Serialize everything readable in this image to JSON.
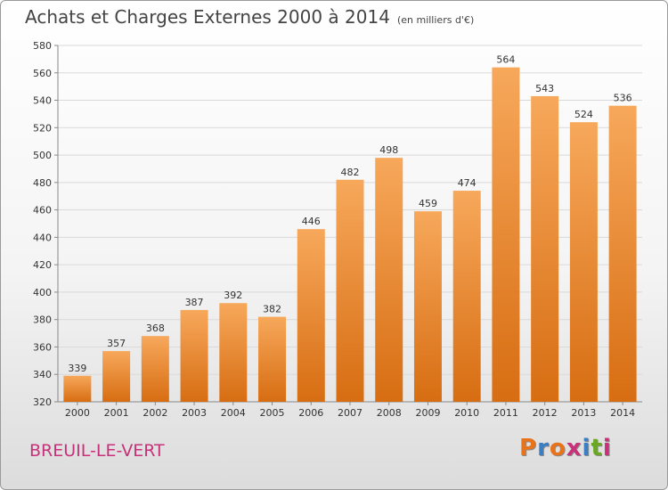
{
  "title": "Achats et Charges Externes 2000 à 2014",
  "unit_note": "(en milliers d'€)",
  "commune": "BREUIL-LE-VERT",
  "logo": {
    "letters": [
      "P",
      "r",
      "o",
      "x",
      "i",
      "t",
      "i"
    ],
    "colors": [
      "#e8731a",
      "#3a7fc6",
      "#e8731a",
      "#c8317a",
      "#3a7fc6",
      "#6aa823",
      "#c8317a"
    ]
  },
  "colors": {
    "bar_top": "#f7a85b",
    "bar_bottom": "#d76d12",
    "commune_text": "#c8317a"
  },
  "chart_data": {
    "type": "bar",
    "categories": [
      "2000",
      "2001",
      "2002",
      "2003",
      "2004",
      "2005",
      "2006",
      "2007",
      "2008",
      "2009",
      "2010",
      "2011",
      "2012",
      "2013",
      "2014"
    ],
    "values": [
      339,
      357,
      368,
      387,
      392,
      382,
      446,
      482,
      498,
      459,
      474,
      564,
      543,
      524,
      536
    ],
    "ylim": [
      320,
      580
    ],
    "yticks": [
      320,
      340,
      360,
      380,
      400,
      420,
      440,
      460,
      480,
      500,
      520,
      540,
      560,
      580
    ],
    "grid": true,
    "legend": "none"
  }
}
